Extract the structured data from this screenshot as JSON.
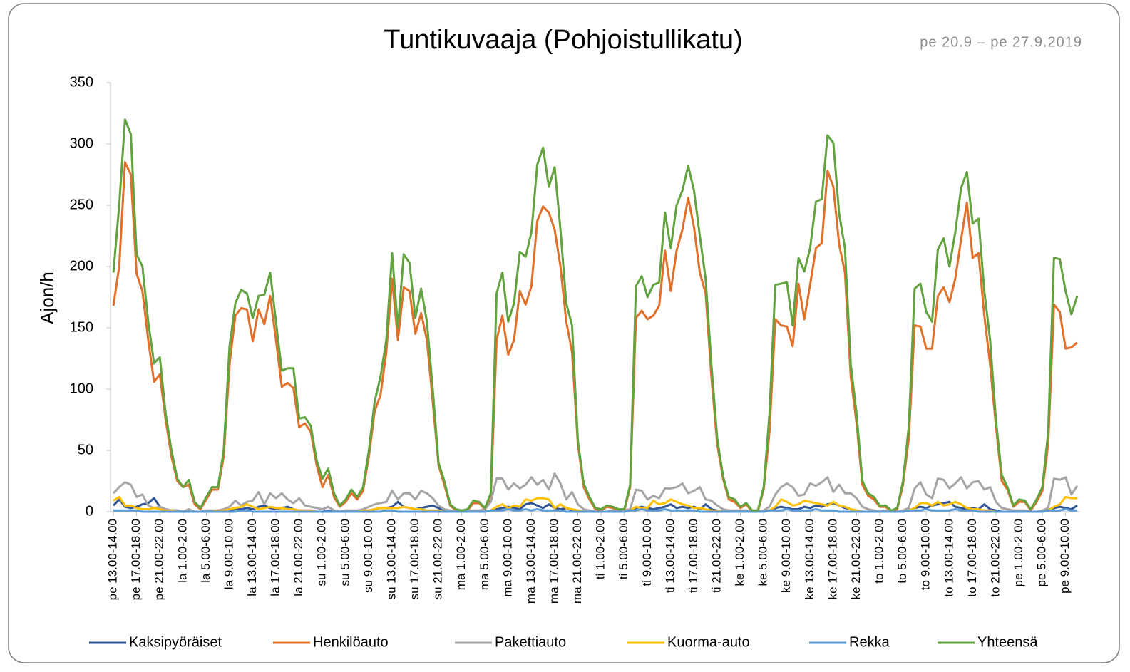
{
  "chart_data": {
    "type": "line",
    "title": "Tuntikuvaaja (Pohjoistullikatu)",
    "subtitle": "pe 20.9 – pe 27.9.2019",
    "y_label": "Ajon/h",
    "ylim": [
      0,
      350
    ],
    "yticks": [
      0,
      50,
      100,
      150,
      200,
      250,
      300,
      350
    ],
    "grid": false,
    "legend": "bottom",
    "categories": [
      "pe 13.00-14.00",
      null,
      null,
      null,
      "pe 17.00-18.00",
      null,
      null,
      null,
      "pe 21.00-22.00",
      null,
      null,
      null,
      "la 1.00-2.00",
      null,
      null,
      null,
      "la 5.00-6.00",
      null,
      null,
      null,
      "la 9.00-10.00",
      null,
      null,
      null,
      "la 13.00-14.00",
      null,
      null,
      null,
      "la 17.00-18.00",
      null,
      null,
      null,
      "la 21.00-22.00",
      null,
      null,
      null,
      "su 1.00-2.00",
      null,
      null,
      null,
      "su 5.00-6.00",
      null,
      null,
      null,
      "su 9.00-10.00",
      null,
      null,
      null,
      "su 13.00-14.00",
      null,
      null,
      null,
      "su 17.00-18.00",
      null,
      null,
      null,
      "su 21.00-22.00",
      null,
      null,
      null,
      "ma 1.00-2.00",
      null,
      null,
      null,
      "ma 5.00-6.00",
      null,
      null,
      null,
      "ma 9.00-10.00",
      null,
      null,
      null,
      "ma 13.00-14.00",
      null,
      null,
      null,
      "ma 17.00-18.00",
      null,
      null,
      null,
      "ma 21.00-22.00",
      null,
      null,
      null,
      "ti 1.00-2.00",
      null,
      null,
      null,
      "ti 5.00-6.00",
      null,
      null,
      null,
      "ti 9.00-10.00",
      null,
      null,
      null,
      "ti 13.00-14.00",
      null,
      null,
      null,
      "ti 17.00-18.00",
      null,
      null,
      null,
      "ti 21.00-22.00",
      null,
      null,
      null,
      "ke 1.00-2.00",
      null,
      null,
      null,
      "ke 5.00-6.00",
      null,
      null,
      null,
      "ke 9.00-10.00",
      null,
      null,
      null,
      "ke 13.00-14.00",
      null,
      null,
      null,
      "ke 17.00-18.00",
      null,
      null,
      null,
      "ke 21.00-22.00",
      null,
      null,
      null,
      "to 1.00-2.00",
      null,
      null,
      null,
      "to 5.00-6.00",
      null,
      null,
      null,
      "to 9.00-10.00",
      null,
      null,
      null,
      "to 13.00-14.00",
      null,
      null,
      null,
      "to 17.00-18.00",
      null,
      null,
      null,
      "to 21.00-22.00",
      null,
      null,
      null,
      "pe 1.00-2.00",
      null,
      null,
      null,
      "pe 5.00-6.00",
      null,
      null,
      null,
      "pe 9.00-10.00",
      null,
      null
    ],
    "series": [
      {
        "name": "Kaksipyöräiset",
        "color": "#2f5597",
        "values": [
          5,
          10,
          4,
          3,
          4,
          6,
          7,
          11,
          4,
          2,
          1,
          1,
          0,
          1,
          0,
          0,
          0,
          0,
          1,
          1,
          1,
          2,
          2,
          3,
          2,
          4,
          5,
          3,
          2,
          3,
          4,
          2,
          1,
          1,
          1,
          0,
          0,
          1,
          0,
          0,
          0,
          0,
          0,
          0,
          1,
          2,
          3,
          3,
          4,
          8,
          4,
          3,
          2,
          3,
          4,
          5,
          3,
          1,
          0,
          0,
          0,
          0,
          0,
          0,
          0,
          1,
          2,
          3,
          4,
          3,
          2,
          6,
          7,
          5,
          3,
          6,
          3,
          2,
          3,
          1,
          1,
          0,
          0,
          0,
          0,
          0,
          0,
          0,
          0,
          1,
          3,
          4,
          3,
          2,
          3,
          4,
          6,
          3,
          4,
          3,
          4,
          2,
          6,
          2,
          1,
          0,
          0,
          0,
          0,
          0,
          0,
          0,
          0,
          1,
          3,
          4,
          3,
          2,
          2,
          4,
          3,
          5,
          4,
          6,
          7,
          5,
          3,
          2,
          1,
          0,
          0,
          0,
          0,
          0,
          0,
          0,
          0,
          1,
          3,
          4,
          3,
          5,
          6,
          7,
          8,
          4,
          3,
          2,
          3,
          2,
          6,
          2,
          1,
          0,
          0,
          0,
          0,
          0,
          0,
          0,
          0,
          1,
          3,
          4,
          3,
          2,
          5
        ]
      },
      {
        "name": "Henkilöauto",
        "color": "#e0702a",
        "values": [
          168,
          200,
          285,
          275,
          194,
          180,
          140,
          106,
          112,
          75,
          45,
          25,
          20,
          22,
          6,
          2,
          10,
          18,
          18,
          45,
          120,
          160,
          166,
          165,
          139,
          165,
          153,
          176,
          140,
          102,
          105,
          101,
          69,
          72,
          65,
          38,
          20,
          30,
          12,
          4,
          8,
          15,
          10,
          17,
          45,
          82,
          95,
          130,
          190,
          140,
          183,
          180,
          145,
          162,
          140,
          90,
          38,
          22,
          5,
          1,
          0,
          1,
          7,
          7,
          2,
          12,
          140,
          160,
          128,
          140,
          180,
          169,
          184,
          237,
          249,
          244,
          230,
          200,
          155,
          130,
          55,
          20,
          10,
          2,
          1,
          4,
          3,
          1,
          1,
          20,
          158,
          164,
          157,
          160,
          168,
          213,
          180,
          213,
          230,
          256,
          232,
          195,
          178,
          110,
          55,
          27,
          10,
          8,
          3,
          6,
          0,
          0,
          18,
          65,
          157,
          152,
          151,
          135,
          186,
          157,
          185,
          215,
          219,
          278,
          265,
          218,
          195,
          110,
          72,
          22,
          13,
          10,
          4,
          4,
          0,
          2,
          22,
          60,
          152,
          151,
          133,
          133,
          176,
          183,
          171,
          190,
          222,
          252,
          207,
          211,
          160,
          120,
          70,
          25,
          18,
          4,
          8,
          8,
          1,
          8,
          17,
          55,
          169,
          163,
          133,
          134,
          138
        ]
      },
      {
        "name": "Pakettiauto",
        "color": "#a5a5a5",
        "values": [
          15,
          20,
          24,
          22,
          12,
          14,
          5,
          3,
          4,
          2,
          1,
          1,
          0,
          2,
          0,
          0,
          1,
          1,
          1,
          2,
          4,
          9,
          5,
          8,
          9,
          16,
          6,
          15,
          11,
          15,
          10,
          7,
          11,
          5,
          4,
          3,
          2,
          4,
          1,
          0,
          1,
          1,
          1,
          2,
          4,
          6,
          7,
          8,
          17,
          10,
          15,
          15,
          10,
          17,
          15,
          11,
          5,
          2,
          1,
          0,
          0,
          1,
          1,
          1,
          2,
          8,
          27,
          27,
          18,
          23,
          19,
          22,
          28,
          22,
          26,
          18,
          31,
          23,
          10,
          16,
          6,
          2,
          1,
          0,
          0,
          0,
          1,
          0,
          1,
          2,
          18,
          17,
          10,
          13,
          11,
          19,
          19,
          20,
          23,
          15,
          17,
          20,
          10,
          9,
          5,
          2,
          1,
          1,
          1,
          1,
          0,
          0,
          1,
          4,
          14,
          20,
          23,
          20,
          13,
          14,
          23,
          21,
          24,
          28,
          16,
          22,
          15,
          15,
          11,
          4,
          2,
          1,
          0,
          1,
          0,
          0,
          1,
          3,
          19,
          24,
          14,
          11,
          27,
          26,
          19,
          23,
          28,
          19,
          24,
          25,
          18,
          20,
          8,
          3,
          2,
          1,
          1,
          1,
          0,
          0,
          1,
          3,
          27,
          26,
          28,
          14,
          21
        ]
      },
      {
        "name": "Kuorma-auto",
        "color": "#ffc000",
        "values": [
          9,
          12,
          5,
          5,
          3,
          2,
          2,
          3,
          2,
          1,
          1,
          0,
          0,
          0,
          0,
          0,
          0,
          0,
          1,
          1,
          2,
          3,
          4,
          6,
          4,
          2,
          3,
          4,
          3,
          3,
          2,
          2,
          1,
          1,
          1,
          0,
          0,
          0,
          0,
          0,
          0,
          0,
          0,
          1,
          1,
          2,
          3,
          3,
          3,
          3,
          4,
          3,
          2,
          2,
          1,
          1,
          1,
          0,
          0,
          0,
          0,
          0,
          0,
          0,
          0,
          1,
          4,
          6,
          3,
          5,
          4,
          10,
          9,
          11,
          11,
          10,
          3,
          6,
          3,
          2,
          1,
          0,
          0,
          0,
          0,
          0,
          0,
          0,
          0,
          1,
          4,
          3,
          3,
          9,
          6,
          7,
          10,
          8,
          6,
          5,
          3,
          3,
          2,
          1,
          1,
          0,
          0,
          0,
          0,
          0,
          0,
          0,
          0,
          1,
          4,
          10,
          8,
          5,
          6,
          9,
          8,
          7,
          6,
          5,
          8,
          5,
          4,
          2,
          1,
          0,
          0,
          0,
          0,
          0,
          0,
          0,
          0,
          1,
          3,
          7,
          7,
          5,
          8,
          5,
          6,
          8,
          6,
          3,
          2,
          2,
          1,
          1,
          0,
          0,
          0,
          0,
          0,
          0,
          0,
          0,
          0,
          1,
          4,
          6,
          12,
          11,
          11
        ]
      },
      {
        "name": "Rekka",
        "color": "#5b9bd5",
        "values": [
          1,
          1,
          1,
          1,
          1,
          0,
          0,
          0,
          0,
          0,
          0,
          0,
          0,
          0,
          0,
          0,
          0,
          0,
          0,
          0,
          0,
          0,
          1,
          1,
          0,
          0,
          0,
          0,
          0,
          0,
          0,
          0,
          0,
          0,
          0,
          0,
          0,
          0,
          0,
          0,
          0,
          0,
          0,
          0,
          0,
          0,
          0,
          1,
          1,
          0,
          0,
          0,
          0,
          0,
          0,
          0,
          0,
          0,
          0,
          0,
          0,
          0,
          0,
          0,
          0,
          1,
          1,
          1,
          2,
          1,
          1,
          2,
          1,
          2,
          1,
          1,
          1,
          1,
          0,
          0,
          0,
          0,
          0,
          0,
          0,
          0,
          0,
          0,
          0,
          1,
          1,
          2,
          1,
          1,
          1,
          2,
          1,
          1,
          1,
          1,
          1,
          0,
          0,
          0,
          0,
          0,
          0,
          0,
          0,
          0,
          0,
          0,
          0,
          1,
          1,
          1,
          2,
          1,
          1,
          1,
          1,
          2,
          1,
          1,
          1,
          0,
          0,
          0,
          0,
          0,
          0,
          0,
          0,
          0,
          0,
          0,
          0,
          1,
          1,
          1,
          2,
          1,
          1,
          1,
          1,
          2,
          1,
          1,
          1,
          0,
          0,
          0,
          0,
          0,
          0,
          0,
          0,
          0,
          0,
          0,
          0,
          1,
          1,
          1,
          2,
          1,
          1
        ]
      },
      {
        "name": "Yhteensä",
        "color": "#62a340",
        "values": [
          195,
          250,
          320,
          308,
          210,
          200,
          155,
          121,
          126,
          80,
          50,
          27,
          20,
          26,
          8,
          3,
          12,
          20,
          20,
          50,
          135,
          170,
          181,
          178,
          158,
          176,
          177,
          195,
          155,
          115,
          117,
          117,
          76,
          77,
          70,
          42,
          27,
          35,
          15,
          5,
          10,
          18,
          12,
          20,
          50,
          90,
          110,
          140,
          211,
          150,
          210,
          203,
          158,
          182,
          155,
          100,
          40,
          25,
          6,
          2,
          1,
          2,
          9,
          8,
          3,
          15,
          178,
          195,
          155,
          170,
          212,
          208,
          228,
          283,
          297,
          265,
          281,
          230,
          170,
          152,
          58,
          23,
          12,
          3,
          2,
          5,
          4,
          2,
          2,
          22,
          184,
          192,
          175,
          185,
          187,
          244,
          215,
          250,
          262,
          282,
          262,
          225,
          190,
          120,
          60,
          29,
          12,
          10,
          4,
          7,
          1,
          1,
          20,
          80,
          185,
          186,
          187,
          152,
          207,
          196,
          215,
          253,
          255,
          307,
          301,
          243,
          215,
          120,
          80,
          25,
          15,
          12,
          5,
          5,
          1,
          3,
          25,
          70,
          182,
          186,
          163,
          155,
          214,
          223,
          200,
          228,
          264,
          277,
          235,
          239,
          180,
          140,
          75,
          30,
          20,
          5,
          10,
          9,
          2,
          10,
          20,
          65,
          207,
          206,
          180,
          161,
          176
        ]
      }
    ]
  }
}
